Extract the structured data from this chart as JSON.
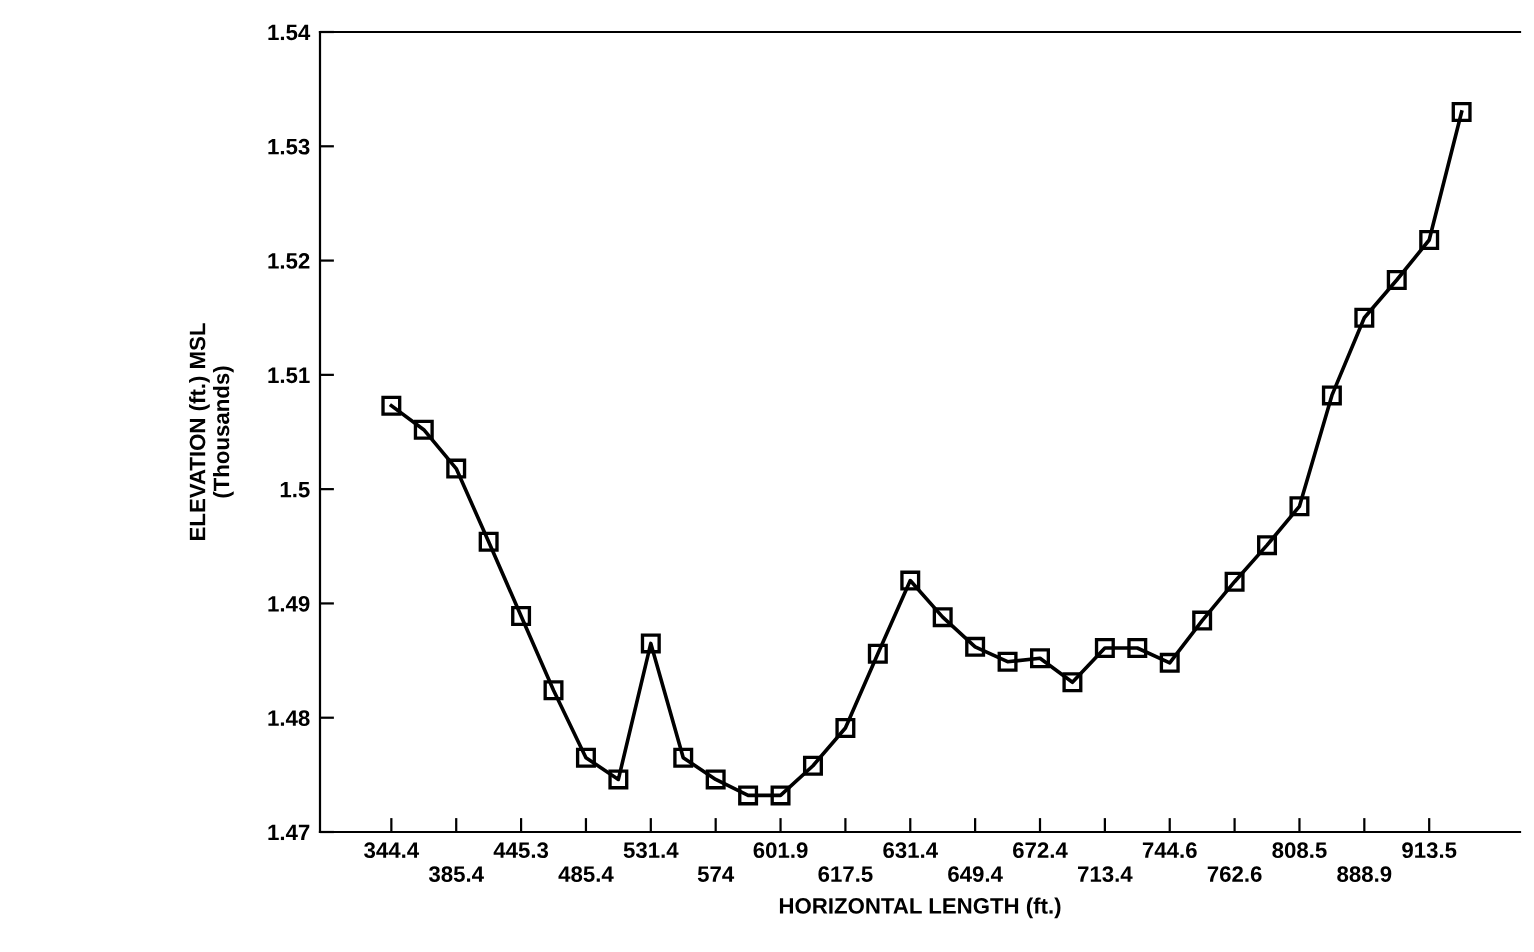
{
  "chart_data": {
    "type": "line",
    "xlabel": "HORIZONTAL LENGTH (ft.)",
    "ylabel": "ELEVATION (ft.) MSL\n(Thousands)",
    "categories": [
      "344.4",
      null,
      "385.4",
      null,
      "445.3",
      null,
      "485.4",
      null,
      "531.4",
      null,
      "574",
      null,
      "601.9",
      null,
      "617.5",
      null,
      "631.4",
      null,
      "649.4",
      null,
      "672.4",
      null,
      "713.4",
      null,
      "744.6",
      null,
      "762.6",
      null,
      "808.5",
      null,
      "888.9",
      null,
      "913.5",
      null
    ],
    "series": [
      {
        "color": "#000000",
        "values": [
          1.5073,
          1.5052,
          1.5018,
          1.4954,
          1.4889,
          1.4824,
          1.4765,
          1.4746,
          1.4865,
          1.4765,
          1.4746,
          1.4732,
          1.4732,
          1.4758,
          1.4791,
          1.4856,
          1.492,
          1.4888,
          1.4862,
          1.4849,
          1.4852,
          1.4831,
          1.4861,
          1.4861,
          1.4848,
          1.4885,
          1.4919,
          1.4951,
          1.4985,
          1.5082,
          1.515,
          1.5183,
          1.5218,
          1.533
        ]
      }
    ],
    "ylim": [
      1.47,
      1.54
    ],
    "yticks": [
      1.47,
      1.48,
      1.49,
      1.5,
      1.51,
      1.52,
      1.53,
      1.54
    ],
    "marker": "square",
    "line_style": "solid",
    "grid": false,
    "legend": false
  }
}
